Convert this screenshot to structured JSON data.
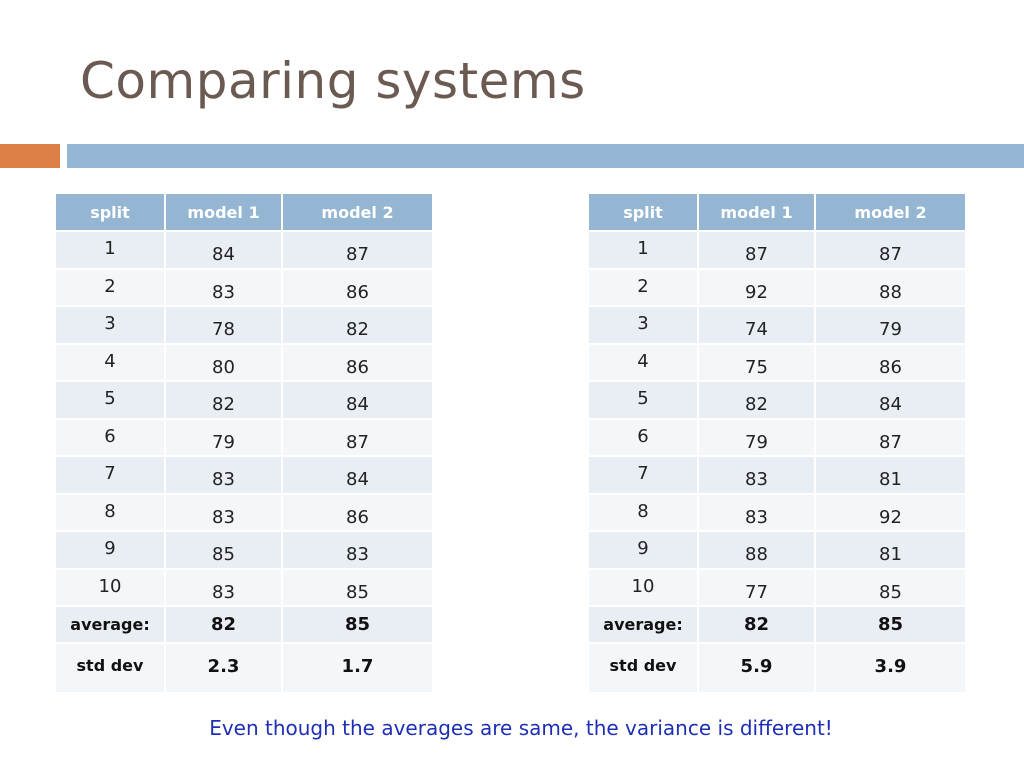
{
  "title": "Comparing systems",
  "tables": [
    {
      "headers": [
        "split",
        "model 1",
        "model 2"
      ],
      "rows": [
        [
          "1",
          "84",
          "87"
        ],
        [
          "2",
          "83",
          "86"
        ],
        [
          "3",
          "78",
          "82"
        ],
        [
          "4",
          "80",
          "86"
        ],
        [
          "5",
          "82",
          "84"
        ],
        [
          "6",
          "79",
          "87"
        ],
        [
          "7",
          "83",
          "84"
        ],
        [
          "8",
          "83",
          "86"
        ],
        [
          "9",
          "85",
          "83"
        ],
        [
          "10",
          "83",
          "85"
        ]
      ],
      "average": [
        "average:",
        "82",
        "85"
      ],
      "std_dev": [
        "std dev",
        "2.3",
        "1.7"
      ]
    },
    {
      "headers": [
        "split",
        "model 1",
        "model 2"
      ],
      "rows": [
        [
          "1",
          "87",
          "87"
        ],
        [
          "2",
          "92",
          "88"
        ],
        [
          "3",
          "74",
          "79"
        ],
        [
          "4",
          "75",
          "86"
        ],
        [
          "5",
          "82",
          "84"
        ],
        [
          "6",
          "79",
          "87"
        ],
        [
          "7",
          "83",
          "81"
        ],
        [
          "8",
          "83",
          "92"
        ],
        [
          "9",
          "88",
          "81"
        ],
        [
          "10",
          "77",
          "85"
        ]
      ],
      "average": [
        "average:",
        "82",
        "85"
      ],
      "std_dev": [
        "std dev",
        "5.9",
        "3.9"
      ]
    }
  ],
  "note": "Even though the averages are same, the variance is different!"
}
